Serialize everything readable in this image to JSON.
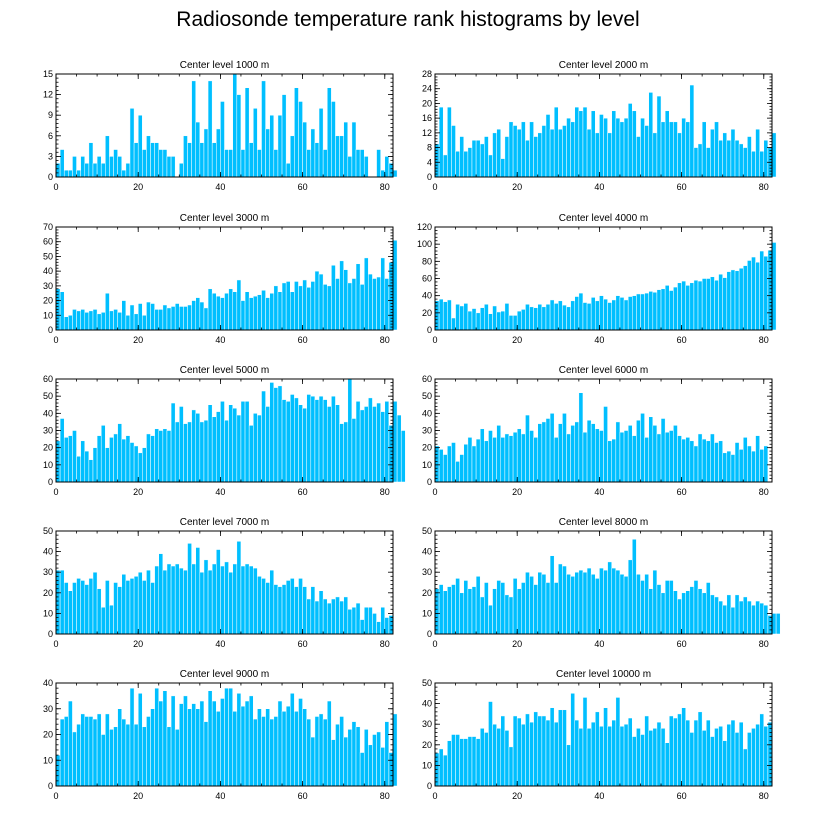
{
  "figure_title": "Radiosonde temperature rank histograms by level",
  "bar_color": "#00BFFF",
  "chart_data": [
    {
      "type": "bar",
      "title": "Center level 1000 m",
      "xlim": [
        0,
        82
      ],
      "ylim": [
        0,
        15
      ],
      "xticks": [
        0,
        20,
        40,
        60,
        80
      ],
      "yticks": [
        0,
        3,
        6,
        9,
        12,
        15
      ],
      "values": [
        2,
        4,
        1,
        1,
        3,
        1,
        3,
        2,
        5,
        2,
        3,
        2,
        6,
        3,
        4,
        3,
        1,
        2,
        10,
        5,
        9,
        4,
        6,
        5,
        5,
        4,
        4,
        3,
        3,
        0,
        2,
        6,
        5,
        14,
        8,
        5,
        7,
        14,
        5,
        7,
        11,
        4,
        4,
        15,
        12,
        4,
        13,
        5,
        10,
        4,
        14,
        7,
        9,
        4,
        9,
        12,
        2,
        6,
        13,
        11,
        8,
        4,
        7,
        5,
        10,
        4,
        13,
        11,
        6,
        6,
        8,
        3,
        8,
        4,
        4,
        3,
        0,
        0,
        4,
        1,
        3,
        2,
        1
      ]
    },
    {
      "type": "bar",
      "title": "Center level 2000 m",
      "xlim": [
        0,
        82
      ],
      "ylim": [
        0,
        28
      ],
      "xticks": [
        0,
        20,
        40,
        60,
        80
      ],
      "yticks": [
        0,
        4,
        8,
        12,
        16,
        20,
        24,
        28
      ],
      "values": [
        9,
        19,
        6,
        19,
        14,
        7,
        11,
        7,
        8,
        10,
        10,
        9,
        11,
        6,
        12,
        13,
        5,
        11,
        15,
        14,
        13,
        15,
        10,
        15,
        11,
        12,
        14,
        17,
        13,
        19,
        13,
        14,
        16,
        15,
        19,
        18,
        19,
        13,
        18,
        12,
        17,
        16,
        12,
        18,
        16,
        15,
        16,
        20,
        18,
        11,
        16,
        14,
        23,
        12,
        22,
        15,
        18,
        15,
        15,
        12,
        16,
        15,
        25,
        8,
        9,
        15,
        8,
        13,
        15,
        10,
        12,
        10,
        13,
        10,
        9,
        8,
        11,
        7,
        13,
        7,
        10,
        8,
        12
      ]
    },
    {
      "type": "bar",
      "title": "Center level 3000 m",
      "xlim": [
        0,
        82
      ],
      "ylim": [
        0,
        70
      ],
      "xticks": [
        0,
        20,
        40,
        60,
        80
      ],
      "yticks": [
        0,
        10,
        20,
        30,
        40,
        50,
        60,
        70
      ],
      "values": [
        28,
        26,
        9,
        10,
        14,
        13,
        14,
        12,
        13,
        14,
        11,
        12,
        25,
        13,
        14,
        12,
        20,
        10,
        17,
        11,
        18,
        10,
        19,
        18,
        14,
        14,
        17,
        15,
        16,
        18,
        16,
        16,
        17,
        20,
        22,
        19,
        15,
        28,
        25,
        23,
        22,
        25,
        28,
        26,
        34,
        20,
        26,
        22,
        23,
        24,
        27,
        22,
        25,
        30,
        26,
        32,
        33,
        26,
        33,
        30,
        34,
        29,
        33,
        40,
        38,
        31,
        30,
        44,
        35,
        47,
        41,
        32,
        35,
        45,
        31,
        49,
        38,
        35,
        36,
        49,
        35,
        46,
        61
      ]
    },
    {
      "type": "bar",
      "title": "Center level 4000 m",
      "xlim": [
        0,
        82
      ],
      "ylim": [
        0,
        120
      ],
      "xticks": [
        0,
        20,
        40,
        60,
        80
      ],
      "yticks": [
        0,
        20,
        40,
        60,
        80,
        100,
        120
      ],
      "values": [
        34,
        36,
        33,
        35,
        14,
        30,
        28,
        31,
        22,
        25,
        20,
        26,
        30,
        19,
        28,
        21,
        22,
        31,
        17,
        17,
        22,
        24,
        30,
        27,
        26,
        30,
        27,
        30,
        35,
        31,
        34,
        29,
        27,
        34,
        39,
        43,
        32,
        31,
        38,
        34,
        40,
        36,
        32,
        35,
        40,
        38,
        35,
        39,
        40,
        42,
        42,
        43,
        45,
        44,
        47,
        48,
        52,
        46,
        50,
        55,
        57,
        52,
        55,
        58,
        57,
        60,
        60,
        62,
        58,
        65,
        61,
        68,
        70,
        69,
        72,
        75,
        81,
        85,
        79,
        92,
        86,
        93,
        102
      ]
    },
    {
      "type": "bar",
      "title": "Center level 5000 m",
      "xlim": [
        0,
        82
      ],
      "ylim": [
        0,
        60
      ],
      "xticks": [
        0,
        20,
        40,
        60,
        80
      ],
      "yticks": [
        0,
        10,
        20,
        30,
        40,
        50,
        60
      ],
      "values": [
        24,
        37,
        26,
        27,
        30,
        15,
        24,
        18,
        13,
        20,
        27,
        33,
        20,
        26,
        28,
        34,
        25,
        27,
        23,
        21,
        17,
        20,
        28,
        27,
        31,
        30,
        31,
        30,
        46,
        35,
        44,
        34,
        35,
        42,
        40,
        35,
        36,
        45,
        38,
        41,
        47,
        36,
        45,
        43,
        39,
        47,
        47,
        33,
        40,
        39,
        53,
        44,
        58,
        55,
        56,
        48,
        47,
        51,
        49,
        45,
        43,
        51,
        50,
        48,
        50,
        48,
        44,
        50,
        45,
        34,
        35,
        60,
        37,
        47,
        42,
        44,
        49,
        44,
        46,
        41,
        47,
        33,
        47,
        39,
        30
      ]
    },
    {
      "type": "bar",
      "title": "Center level 6000 m",
      "xlim": [
        0,
        82
      ],
      "ylim": [
        0,
        60
      ],
      "xticks": [
        0,
        20,
        40,
        60,
        80
      ],
      "yticks": [
        0,
        10,
        20,
        30,
        40,
        50,
        60
      ],
      "values": [
        21,
        19,
        16,
        21,
        23,
        12,
        16,
        22,
        26,
        21,
        25,
        31,
        24,
        30,
        26,
        33,
        26,
        28,
        27,
        29,
        31,
        28,
        39,
        30,
        26,
        34,
        35,
        37,
        40,
        26,
        34,
        40,
        28,
        33,
        35,
        52,
        29,
        36,
        34,
        31,
        30,
        44,
        24,
        25,
        35,
        29,
        30,
        33,
        27,
        36,
        40,
        26,
        38,
        33,
        28,
        37,
        29,
        30,
        33,
        27,
        25,
        26,
        24,
        21,
        28,
        25,
        24,
        28,
        23,
        24,
        17,
        18,
        16,
        23,
        19,
        26,
        21,
        18,
        27,
        19,
        21
      ]
    },
    {
      "type": "bar",
      "title": "Center level 7000 m",
      "xlim": [
        0,
        82
      ],
      "ylim": [
        0,
        50
      ],
      "xticks": [
        0,
        20,
        40,
        60,
        80
      ],
      "yticks": [
        0,
        10,
        20,
        30,
        40,
        50
      ],
      "values": [
        31,
        31,
        25,
        21,
        25,
        27,
        26,
        24,
        27,
        30,
        22,
        13,
        26,
        14,
        25,
        23,
        29,
        26,
        27,
        28,
        30,
        26,
        31,
        25,
        33,
        39,
        31,
        34,
        33,
        34,
        32,
        31,
        44,
        34,
        42,
        30,
        36,
        31,
        34,
        41,
        33,
        35,
        30,
        34,
        45,
        33,
        34,
        33,
        32,
        28,
        27,
        25,
        31,
        24,
        23,
        24,
        26,
        27,
        23,
        27,
        23,
        17,
        23,
        16,
        21,
        17,
        15,
        17,
        18,
        16,
        18,
        12,
        13,
        15,
        7,
        13,
        13,
        10,
        6,
        13,
        8,
        9
      ]
    },
    {
      "type": "bar",
      "title": "Center level 8000 m",
      "xlim": [
        0,
        82
      ],
      "ylim": [
        0,
        50
      ],
      "xticks": [
        0,
        20,
        40,
        60,
        80
      ],
      "yticks": [
        0,
        10,
        20,
        30,
        40,
        50
      ],
      "values": [
        22,
        24,
        21,
        23,
        24,
        27,
        20,
        26,
        22,
        23,
        28,
        18,
        25,
        14,
        22,
        26,
        25,
        19,
        18,
        27,
        22,
        25,
        30,
        28,
        24,
        30,
        29,
        25,
        38,
        25,
        34,
        33,
        29,
        28,
        30,
        31,
        30,
        32,
        29,
        27,
        32,
        31,
        35,
        32,
        31,
        29,
        28,
        36,
        46,
        29,
        26,
        29,
        22,
        31,
        24,
        20,
        26,
        26,
        21,
        17,
        20,
        21,
        23,
        26,
        22,
        20,
        25,
        19,
        18,
        16,
        14,
        19,
        13,
        19,
        16,
        18,
        16,
        14,
        16,
        15,
        14,
        9,
        10,
        10
      ]
    },
    {
      "type": "bar",
      "title": "Center level 9000 m",
      "xlim": [
        0,
        82
      ],
      "ylim": [
        0,
        40
      ],
      "xticks": [
        0,
        20,
        40,
        60,
        80
      ],
      "yticks": [
        0,
        10,
        20,
        30,
        40
      ],
      "values": [
        12,
        26,
        27,
        33,
        21,
        24,
        28,
        27,
        27,
        26,
        28,
        20,
        28,
        22,
        23,
        30,
        26,
        24,
        38,
        24,
        36,
        23,
        27,
        30,
        38,
        33,
        37,
        23,
        35,
        22,
        32,
        35,
        30,
        32,
        30,
        33,
        25,
        37,
        33,
        29,
        34,
        38,
        38,
        29,
        36,
        31,
        33,
        35,
        26,
        30,
        27,
        30,
        26,
        27,
        33,
        29,
        31,
        36,
        29,
        34,
        30,
        26,
        19,
        27,
        28,
        26,
        33,
        18,
        24,
        27,
        19,
        22,
        25,
        23,
        13,
        22,
        16,
        20,
        21,
        15,
        25,
        13,
        28
      ]
    },
    {
      "type": "bar",
      "title": "Center level 10000 m",
      "xlim": [
        0,
        82
      ],
      "ylim": [
        0,
        50
      ],
      "xticks": [
        0,
        20,
        40,
        60,
        80
      ],
      "yticks": [
        0,
        10,
        20,
        30,
        40,
        50
      ],
      "values": [
        16,
        18,
        15,
        22,
        25,
        25,
        23,
        23,
        24,
        24,
        23,
        28,
        26,
        41,
        30,
        28,
        34,
        27,
        19,
        34,
        33,
        30,
        35,
        31,
        36,
        34,
        34,
        32,
        38,
        31,
        37,
        37,
        20,
        45,
        32,
        28,
        43,
        28,
        31,
        36,
        29,
        38,
        29,
        32,
        43,
        29,
        30,
        33,
        24,
        28,
        25,
        34,
        27,
        28,
        31,
        28,
        21,
        34,
        33,
        35,
        38,
        32,
        26,
        32,
        36,
        27,
        32,
        24,
        28,
        29,
        22,
        30,
        32,
        26,
        31,
        18,
        26,
        28,
        30,
        35,
        29,
        31
      ]
    }
  ]
}
